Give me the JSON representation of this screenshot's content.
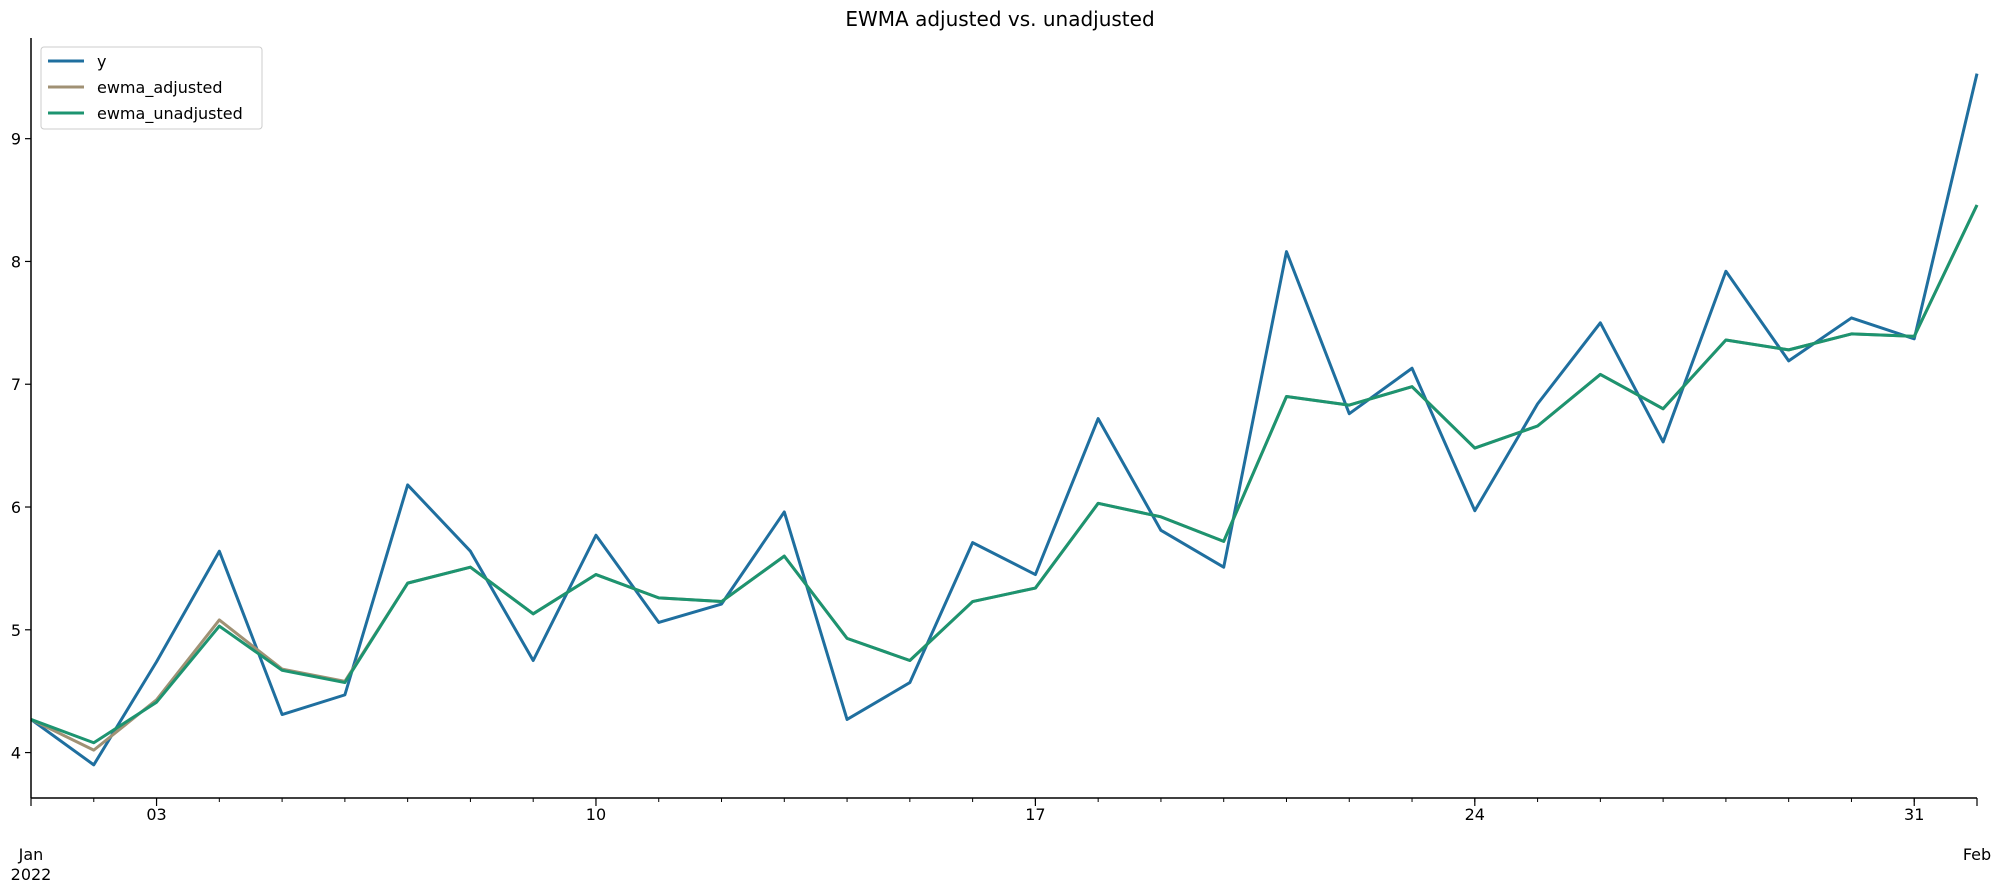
{
  "chart_data": {
    "type": "line",
    "title": "EWMA adjusted vs. unadjusted",
    "xlabel": "",
    "ylabel": "",
    "x": [
      "2022-01-01",
      "2022-01-02",
      "2022-01-03",
      "2022-01-04",
      "2022-01-05",
      "2022-01-06",
      "2022-01-07",
      "2022-01-08",
      "2022-01-09",
      "2022-01-10",
      "2022-01-11",
      "2022-01-12",
      "2022-01-13",
      "2022-01-14",
      "2022-01-15",
      "2022-01-16",
      "2022-01-17",
      "2022-01-18",
      "2022-01-19",
      "2022-01-20",
      "2022-01-21",
      "2022-01-22",
      "2022-01-23",
      "2022-01-24",
      "2022-01-25",
      "2022-01-26",
      "2022-01-27",
      "2022-01-28",
      "2022-01-29",
      "2022-01-30",
      "2022-01-31",
      "2022-02-01"
    ],
    "series": [
      {
        "name": "y",
        "color": "#1f6f9f",
        "values": [
          4.27,
          3.9,
          4.74,
          5.64,
          4.31,
          4.47,
          6.18,
          5.64,
          4.75,
          5.77,
          5.06,
          5.21,
          5.96,
          4.27,
          4.57,
          5.71,
          5.45,
          6.72,
          5.81,
          5.51,
          8.08,
          6.76,
          7.13,
          5.97,
          6.84,
          7.5,
          6.53,
          7.92,
          7.19,
          7.54,
          7.37,
          9.53
        ]
      },
      {
        "name": "ewma_adjusted",
        "color": "#a09174",
        "values": [
          4.27,
          4.02,
          4.43,
          5.08,
          4.68,
          4.58,
          5.38,
          5.51,
          5.13,
          5.45,
          5.26,
          5.23,
          5.6,
          4.93,
          4.75,
          5.23,
          5.34,
          6.03,
          5.92,
          5.72,
          6.9,
          6.83,
          6.98,
          6.48,
          6.66,
          7.08,
          6.8,
          7.36,
          7.28,
          7.41,
          7.39,
          8.46
        ]
      },
      {
        "name": "ewma_unadjusted",
        "color": "#1d9470",
        "values": [
          4.27,
          4.08,
          4.41,
          5.03,
          4.67,
          4.57,
          5.38,
          5.51,
          5.13,
          5.45,
          5.26,
          5.23,
          5.6,
          4.93,
          4.75,
          5.23,
          5.34,
          6.03,
          5.92,
          5.72,
          6.9,
          6.83,
          6.98,
          6.48,
          6.66,
          7.08,
          6.8,
          7.36,
          7.28,
          7.41,
          7.39,
          8.46
        ]
      }
    ],
    "xlim": [
      "2022-01-01",
      "2022-02-01"
    ],
    "ylim": [
      3.63,
      9.82
    ],
    "yticks": [
      4,
      5,
      6,
      7,
      8,
      9
    ],
    "xticks_major": [
      {
        "date": "2022-01-01",
        "label": "Jan",
        "label2": "2022"
      },
      {
        "date": "2022-01-03",
        "label": "03",
        "label2": ""
      },
      {
        "date": "2022-01-10",
        "label": "10",
        "label2": ""
      },
      {
        "date": "2022-01-17",
        "label": "17",
        "label2": ""
      },
      {
        "date": "2022-01-24",
        "label": "24",
        "label2": ""
      },
      {
        "date": "2022-01-31",
        "label": "31",
        "label2": ""
      },
      {
        "date": "2022-02-01",
        "label": "Feb",
        "label2": ""
      }
    ],
    "grid": false,
    "legend_position": "top-left",
    "spines": "left and bottom only"
  }
}
